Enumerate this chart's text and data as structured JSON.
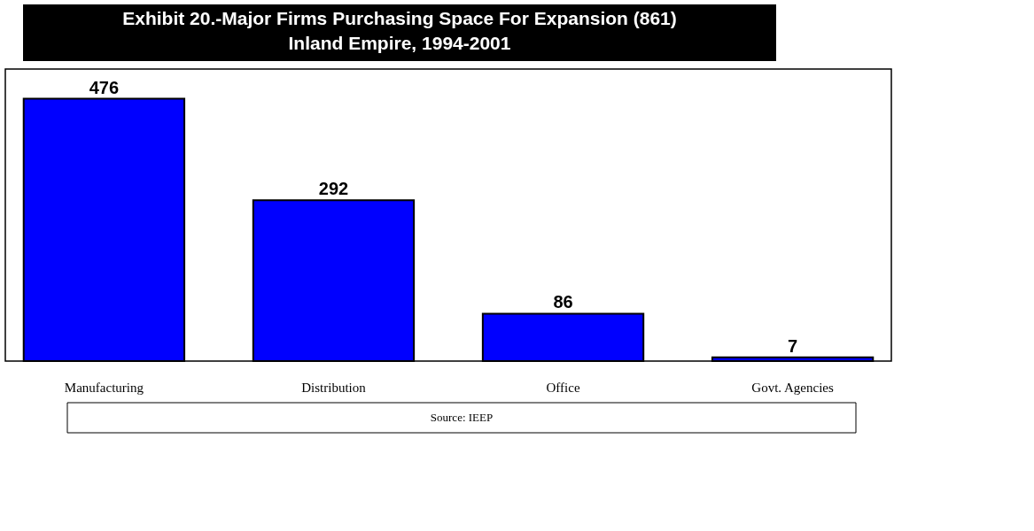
{
  "chart_data": {
    "type": "bar",
    "title": "Exhibit 20.-Major Firms Purchasing Space For Expansion (861)\nInland Empire, 1994-2001",
    "categories": [
      "Manufacturing",
      "Distribution",
      "Office",
      "Govt. Agencies"
    ],
    "values": [
      476,
      292,
      86,
      7
    ],
    "colors": [
      "#0000ff",
      "#0000ff",
      "#0000ff",
      "#0000ff"
    ],
    "ylim": [
      0,
      530
    ],
    "data_labels": true,
    "annotations": [
      "Source: IEEP"
    ]
  }
}
